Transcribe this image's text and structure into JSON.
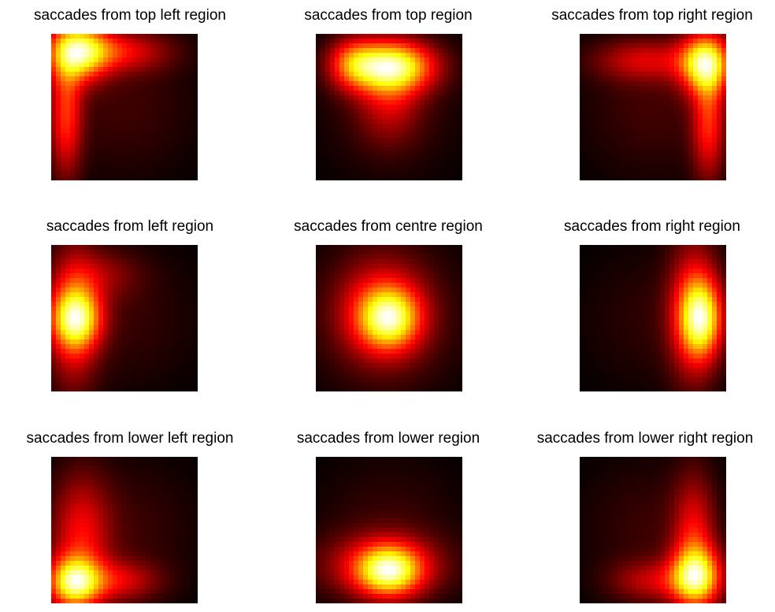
{
  "chart_data": [
    {
      "type": "heatmap",
      "title": "saccades from top left region",
      "colormap": "hot",
      "axes_visible": false,
      "grid": false,
      "peaks": [
        {
          "cx": 0.18,
          "cy": 0.12,
          "sx": 0.14,
          "sy": 0.14,
          "a": 1.0
        },
        {
          "cx": 0.1,
          "cy": 0.55,
          "sx": 0.08,
          "sy": 0.3,
          "a": 0.55
        },
        {
          "cx": 0.45,
          "cy": 0.12,
          "sx": 0.25,
          "sy": 0.1,
          "a": 0.45
        },
        {
          "cx": 0.5,
          "cy": 0.5,
          "sx": 0.35,
          "sy": 0.35,
          "a": 0.12
        }
      ]
    },
    {
      "type": "heatmap",
      "title": "saccades from top region",
      "colormap": "hot",
      "axes_visible": false,
      "grid": false,
      "peaks": [
        {
          "cx": 0.52,
          "cy": 0.22,
          "sx": 0.2,
          "sy": 0.12,
          "a": 1.0
        },
        {
          "cx": 0.25,
          "cy": 0.2,
          "sx": 0.12,
          "sy": 0.12,
          "a": 0.45
        },
        {
          "cx": 0.5,
          "cy": 0.45,
          "sx": 0.15,
          "sy": 0.2,
          "a": 0.3
        },
        {
          "cx": 0.5,
          "cy": 0.5,
          "sx": 0.35,
          "sy": 0.35,
          "a": 0.1
        }
      ]
    },
    {
      "type": "heatmap",
      "title": "saccades from top right region",
      "colormap": "hot",
      "axes_visible": false,
      "grid": false,
      "peaks": [
        {
          "cx": 0.86,
          "cy": 0.2,
          "sx": 0.12,
          "sy": 0.14,
          "a": 1.0
        },
        {
          "cx": 0.88,
          "cy": 0.6,
          "sx": 0.08,
          "sy": 0.28,
          "a": 0.5
        },
        {
          "cx": 0.45,
          "cy": 0.18,
          "sx": 0.25,
          "sy": 0.1,
          "a": 0.35
        },
        {
          "cx": 0.5,
          "cy": 0.5,
          "sx": 0.35,
          "sy": 0.35,
          "a": 0.12
        }
      ]
    },
    {
      "type": "heatmap",
      "title": "saccades from left region",
      "colormap": "hot",
      "axes_visible": false,
      "grid": false,
      "peaks": [
        {
          "cx": 0.17,
          "cy": 0.5,
          "sx": 0.12,
          "sy": 0.14,
          "a": 1.0
        },
        {
          "cx": 0.15,
          "cy": 0.5,
          "sx": 0.12,
          "sy": 0.35,
          "a": 0.55
        },
        {
          "cx": 0.35,
          "cy": 0.2,
          "sx": 0.18,
          "sy": 0.12,
          "a": 0.25
        },
        {
          "cx": 0.5,
          "cy": 0.5,
          "sx": 0.35,
          "sy": 0.35,
          "a": 0.12
        }
      ]
    },
    {
      "type": "heatmap",
      "title": "saccades from centre region",
      "colormap": "hot",
      "axes_visible": false,
      "grid": false,
      "peaks": [
        {
          "cx": 0.5,
          "cy": 0.5,
          "sx": 0.14,
          "sy": 0.14,
          "a": 1.0
        },
        {
          "cx": 0.45,
          "cy": 0.45,
          "sx": 0.22,
          "sy": 0.25,
          "a": 0.55
        },
        {
          "cx": 0.5,
          "cy": 0.5,
          "sx": 0.4,
          "sy": 0.4,
          "a": 0.15
        }
      ]
    },
    {
      "type": "heatmap",
      "title": "saccades from right region",
      "colormap": "hot",
      "axes_visible": false,
      "grid": false,
      "peaks": [
        {
          "cx": 0.83,
          "cy": 0.5,
          "sx": 0.1,
          "sy": 0.18,
          "a": 1.0
        },
        {
          "cx": 0.78,
          "cy": 0.45,
          "sx": 0.12,
          "sy": 0.35,
          "a": 0.55
        },
        {
          "cx": 0.5,
          "cy": 0.5,
          "sx": 0.35,
          "sy": 0.35,
          "a": 0.1
        }
      ]
    },
    {
      "type": "heatmap",
      "title": "saccades from lower left region",
      "colormap": "hot",
      "axes_visible": false,
      "grid": false,
      "peaks": [
        {
          "cx": 0.15,
          "cy": 0.86,
          "sx": 0.12,
          "sy": 0.12,
          "a": 1.0
        },
        {
          "cx": 0.2,
          "cy": 0.55,
          "sx": 0.14,
          "sy": 0.3,
          "a": 0.45
        },
        {
          "cx": 0.45,
          "cy": 0.85,
          "sx": 0.2,
          "sy": 0.1,
          "a": 0.4
        },
        {
          "cx": 0.5,
          "cy": 0.5,
          "sx": 0.35,
          "sy": 0.35,
          "a": 0.12
        }
      ]
    },
    {
      "type": "heatmap",
      "title": "saccades from lower region",
      "colormap": "hot",
      "axes_visible": false,
      "grid": false,
      "peaks": [
        {
          "cx": 0.5,
          "cy": 0.78,
          "sx": 0.15,
          "sy": 0.12,
          "a": 1.0
        },
        {
          "cx": 0.45,
          "cy": 0.75,
          "sx": 0.3,
          "sy": 0.15,
          "a": 0.45
        },
        {
          "cx": 0.5,
          "cy": 0.5,
          "sx": 0.35,
          "sy": 0.35,
          "a": 0.12
        }
      ]
    },
    {
      "type": "heatmap",
      "title": "saccades from lower right region",
      "colormap": "hot",
      "axes_visible": false,
      "grid": false,
      "peaks": [
        {
          "cx": 0.8,
          "cy": 0.82,
          "sx": 0.12,
          "sy": 0.14,
          "a": 1.0
        },
        {
          "cx": 0.78,
          "cy": 0.55,
          "sx": 0.1,
          "sy": 0.3,
          "a": 0.45
        },
        {
          "cx": 0.5,
          "cy": 0.85,
          "sx": 0.2,
          "sy": 0.1,
          "a": 0.35
        },
        {
          "cx": 0.5,
          "cy": 0.5,
          "sx": 0.35,
          "sy": 0.35,
          "a": 0.12
        }
      ]
    }
  ]
}
